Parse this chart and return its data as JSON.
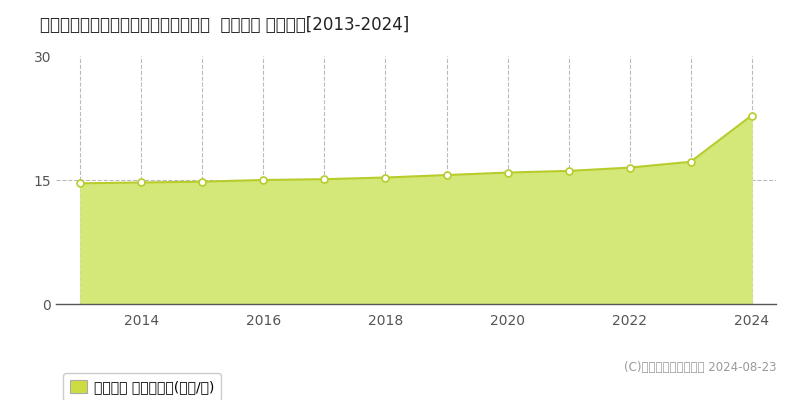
{
  "title": "宮城県名取市飯野坂６丁目３１５番外  地価公示 地価推移[2013-2024]",
  "data_points": [
    [
      2013,
      14.6
    ],
    [
      2014,
      14.7
    ],
    [
      2015,
      14.8
    ],
    [
      2016,
      15.0
    ],
    [
      2017,
      15.1
    ],
    [
      2018,
      15.3
    ],
    [
      2019,
      15.6
    ],
    [
      2020,
      15.9
    ],
    [
      2021,
      16.1
    ],
    [
      2022,
      16.5
    ],
    [
      2023,
      17.2
    ],
    [
      2024,
      22.8
    ]
  ],
  "ylim": [
    0,
    30
  ],
  "yticks": [
    0,
    15,
    30
  ],
  "xticks": [
    2014,
    2016,
    2018,
    2020,
    2022,
    2024
  ],
  "xlim": [
    2012.6,
    2024.4
  ],
  "line_color": "#b8cc2c",
  "fill_color": "#d4e87a",
  "marker_facecolor": "white",
  "marker_edgecolor": "#b8cc2c",
  "grid_color": "#bbbbbb",
  "bg_color": "#ffffff",
  "legend_label": "地価公示 平均坪単価(万円/坪)",
  "legend_marker_color": "#ccdd44",
  "copyright_text": "(C)土地価格ドットコム 2024-08-23",
  "title_fontsize": 12,
  "tick_fontsize": 10,
  "legend_fontsize": 10,
  "copyright_fontsize": 8.5
}
